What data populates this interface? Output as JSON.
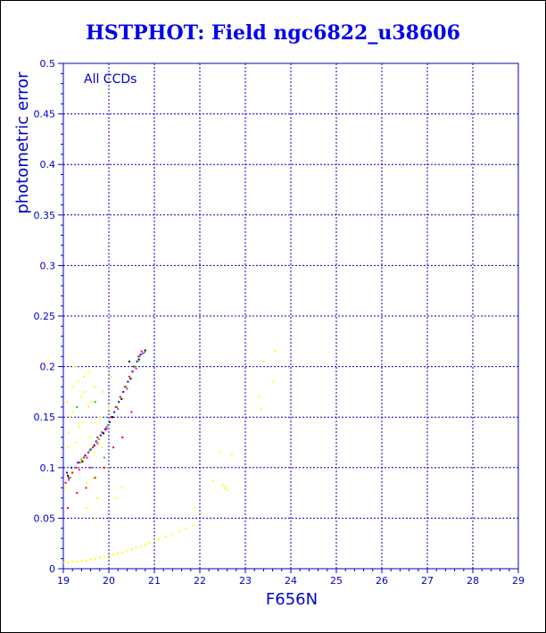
{
  "chart_data": {
    "type": "scatter",
    "title": "HSTPHOT: Field ngc6822_u38606",
    "xlabel": "F656N",
    "ylabel": "photometric error",
    "annotation": "All CCDs",
    "xlim": [
      19,
      29
    ],
    "ylim": [
      0,
      0.5
    ],
    "x_ticks": [
      "19",
      "20",
      "21",
      "22",
      "23",
      "24",
      "25",
      "26",
      "27",
      "28",
      "29"
    ],
    "y_ticks": [
      "0",
      "0.05",
      "0.1",
      "0.15",
      "0.2",
      "0.25",
      "0.3",
      "0.35",
      "0.4",
      "0.45",
      "0.5"
    ],
    "grid": true,
    "colors": {
      "axis": "#0000cc",
      "title": "#0000ee",
      "grid": "#0000cc"
    },
    "series": [
      {
        "color": "#ffff00",
        "points": [
          [
            19.02,
            0.006
          ],
          [
            19.1,
            0.006
          ],
          [
            19.2,
            0.007
          ],
          [
            19.3,
            0.007
          ],
          [
            19.4,
            0.008
          ],
          [
            19.5,
            0.008
          ],
          [
            19.6,
            0.009
          ],
          [
            19.7,
            0.01
          ],
          [
            19.8,
            0.011
          ],
          [
            19.9,
            0.012
          ],
          [
            20.0,
            0.013
          ],
          [
            20.1,
            0.014
          ],
          [
            20.2,
            0.015
          ],
          [
            20.3,
            0.016
          ],
          [
            20.4,
            0.018
          ],
          [
            20.5,
            0.019
          ],
          [
            20.6,
            0.021
          ],
          [
            20.7,
            0.022
          ],
          [
            20.8,
            0.024
          ],
          [
            20.9,
            0.026
          ],
          [
            21.0,
            0.028
          ],
          [
            21.1,
            0.029
          ],
          [
            21.25,
            0.032
          ],
          [
            21.4,
            0.034
          ],
          [
            21.55,
            0.037
          ],
          [
            21.7,
            0.04
          ],
          [
            21.85,
            0.043
          ],
          [
            21.9,
            0.06
          ],
          [
            22.3,
            0.087
          ],
          [
            22.5,
            0.083
          ],
          [
            22.55,
            0.08
          ],
          [
            22.6,
            0.078
          ],
          [
            22.45,
            0.116
          ],
          [
            22.7,
            0.113
          ],
          [
            23.3,
            0.17
          ],
          [
            23.35,
            0.158
          ],
          [
            23.4,
            0.205
          ],
          [
            23.6,
            0.185
          ],
          [
            23.65,
            0.215
          ],
          [
            19.05,
            0.08
          ],
          [
            19.1,
            0.12
          ],
          [
            19.15,
            0.15
          ],
          [
            19.2,
            0.18
          ],
          [
            19.25,
            0.2
          ],
          [
            19.3,
            0.1
          ],
          [
            19.35,
            0.14
          ],
          [
            19.4,
            0.17
          ],
          [
            19.45,
            0.19
          ],
          [
            19.5,
            0.11
          ],
          [
            19.55,
            0.16
          ],
          [
            19.6,
            0.13
          ],
          [
            19.65,
            0.09
          ],
          [
            19.7,
            0.18
          ],
          [
            19.75,
            0.07
          ],
          [
            19.8,
            0.15
          ],
          [
            19.85,
            0.12
          ],
          [
            19.9,
            0.2
          ],
          [
            19.95,
            0.1
          ],
          [
            20.0,
            0.16
          ],
          [
            20.05,
            0.19
          ],
          [
            19.08,
            0.165
          ],
          [
            19.12,
            0.135
          ],
          [
            19.18,
            0.095
          ],
          [
            19.22,
            0.155
          ],
          [
            19.28,
            0.125
          ],
          [
            19.33,
            0.185
          ],
          [
            19.38,
            0.105
          ],
          [
            19.42,
            0.145
          ],
          [
            19.48,
            0.175
          ],
          [
            19.52,
            0.085
          ],
          [
            19.58,
            0.195
          ],
          [
            19.62,
            0.165
          ],
          [
            19.68,
            0.115
          ],
          [
            19.72,
            0.145
          ],
          [
            19.78,
            0.125
          ],
          [
            19.88,
            0.175
          ],
          [
            20.15,
            0.07
          ],
          [
            20.3,
            0.08
          ],
          [
            19.5,
            0.06
          ],
          [
            19.7,
            0.05
          ]
        ]
      },
      {
        "color": "#ff0000",
        "points": [
          [
            19.05,
            0.085
          ],
          [
            19.12,
            0.09
          ],
          [
            19.2,
            0.095
          ],
          [
            19.28,
            0.1
          ],
          [
            19.36,
            0.105
          ],
          [
            19.45,
            0.11
          ],
          [
            19.55,
            0.115
          ],
          [
            19.65,
            0.12
          ],
          [
            19.75,
            0.13
          ],
          [
            19.85,
            0.135
          ],
          [
            19.95,
            0.14
          ],
          [
            20.05,
            0.15
          ],
          [
            20.15,
            0.16
          ],
          [
            20.25,
            0.17
          ],
          [
            20.35,
            0.18
          ],
          [
            20.45,
            0.19
          ],
          [
            20.55,
            0.2
          ],
          [
            20.65,
            0.21
          ],
          [
            20.72,
            0.215
          ],
          [
            19.1,
            0.06
          ],
          [
            19.3,
            0.075
          ],
          [
            19.5,
            0.08
          ],
          [
            19.7,
            0.09
          ],
          [
            19.9,
            0.1
          ],
          [
            20.1,
            0.12
          ],
          [
            20.3,
            0.13
          ],
          [
            20.5,
            0.155
          ]
        ]
      },
      {
        "color": "#0000ff",
        "points": [
          [
            19.08,
            0.095
          ],
          [
            19.18,
            0.1
          ],
          [
            19.32,
            0.105
          ],
          [
            19.48,
            0.112
          ],
          [
            19.6,
            0.118
          ],
          [
            19.72,
            0.126
          ],
          [
            19.82,
            0.132
          ],
          [
            19.92,
            0.138
          ],
          [
            20.02,
            0.145
          ],
          [
            20.12,
            0.155
          ],
          [
            20.22,
            0.165
          ],
          [
            20.32,
            0.175
          ],
          [
            20.42,
            0.185
          ],
          [
            20.52,
            0.195
          ],
          [
            20.62,
            0.205
          ],
          [
            20.7,
            0.212
          ]
        ]
      },
      {
        "color": "#00cc00",
        "points": [
          [
            19.15,
            0.09
          ],
          [
            19.4,
            0.108
          ],
          [
            19.58,
            0.117
          ],
          [
            19.78,
            0.128
          ],
          [
            19.98,
            0.142
          ],
          [
            20.18,
            0.16
          ],
          [
            20.38,
            0.18
          ],
          [
            20.58,
            0.2
          ],
          [
            20.68,
            0.21
          ],
          [
            20.78,
            0.214
          ],
          [
            19.7,
            0.165
          ],
          [
            19.3,
            0.16
          ],
          [
            19.9,
            0.11
          ]
        ]
      },
      {
        "color": "#ff00ff",
        "points": [
          [
            19.12,
            0.088
          ],
          [
            19.35,
            0.098
          ],
          [
            19.52,
            0.11
          ],
          [
            19.75,
            0.124
          ],
          [
            19.95,
            0.138
          ],
          [
            20.2,
            0.158
          ],
          [
            20.4,
            0.178
          ],
          [
            20.6,
            0.198
          ],
          [
            20.75,
            0.213
          ],
          [
            19.6,
            0.1
          ]
        ]
      },
      {
        "color": "#000000",
        "points": [
          [
            19.1,
            0.092
          ],
          [
            19.42,
            0.106
          ],
          [
            19.68,
            0.122
          ],
          [
            19.88,
            0.134
          ],
          [
            20.08,
            0.15
          ],
          [
            20.28,
            0.168
          ],
          [
            20.48,
            0.188
          ],
          [
            20.66,
            0.207
          ],
          [
            20.8,
            0.216
          ],
          [
            20.45,
            0.205
          ]
        ]
      }
    ]
  }
}
